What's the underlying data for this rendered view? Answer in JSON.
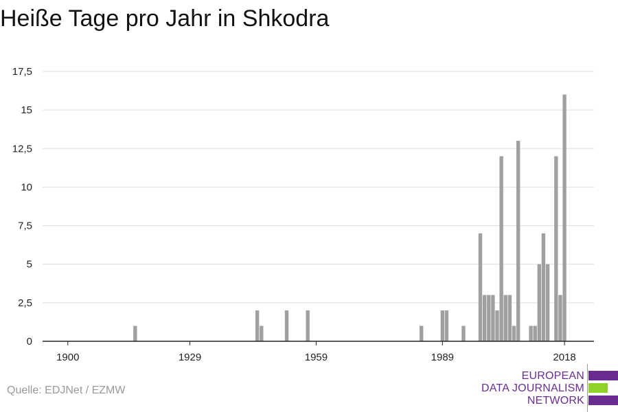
{
  "title": "Heiße Tage pro Jahr in Shkodra",
  "source": "Quelle: EDJNet / EZMW",
  "logo": {
    "lines": [
      "EUROPEAN",
      "DATA JOURNALISM",
      "NETWORK"
    ]
  },
  "colors": {
    "bar": "#a0a0a0",
    "grid": "#dddddd",
    "axis": "#222222",
    "logo_purple": "#6b2c91",
    "logo_green": "#8ed22a"
  },
  "chart_data": {
    "type": "bar",
    "title": "Heiße Tage pro Jahr in Shkodra",
    "xlabel": "",
    "ylabel": "",
    "xlim": [
      1894,
      2025
    ],
    "ylim": [
      0,
      17.5
    ],
    "y_ticks": [
      "0",
      "2,5",
      "5",
      "7,5",
      "10",
      "12,5",
      "15",
      "17,5"
    ],
    "y_tick_values": [
      0,
      2.5,
      5,
      7.5,
      10,
      12.5,
      15,
      17.5
    ],
    "x_ticks": [
      "1900",
      "1929",
      "1959",
      "1989",
      "2018"
    ],
    "x_tick_values": [
      1900,
      1929,
      1959,
      1989,
      2018
    ],
    "grid": true,
    "x": [
      1916,
      1945,
      1946,
      1952,
      1957,
      1984,
      1989,
      1990,
      1994,
      1998,
      1999,
      2000,
      2001,
      2002,
      2003,
      2004,
      2005,
      2006,
      2007,
      2008,
      2010,
      2011,
      2012,
      2013,
      2014,
      2015,
      2016,
      2017,
      2018
    ],
    "values": [
      1,
      2,
      1,
      2,
      2,
      1,
      2,
      2,
      1,
      7,
      3,
      3,
      3,
      2,
      12,
      3,
      3,
      1,
      13,
      0,
      1,
      1,
      5,
      7,
      5,
      0,
      12,
      3,
      16
    ]
  }
}
